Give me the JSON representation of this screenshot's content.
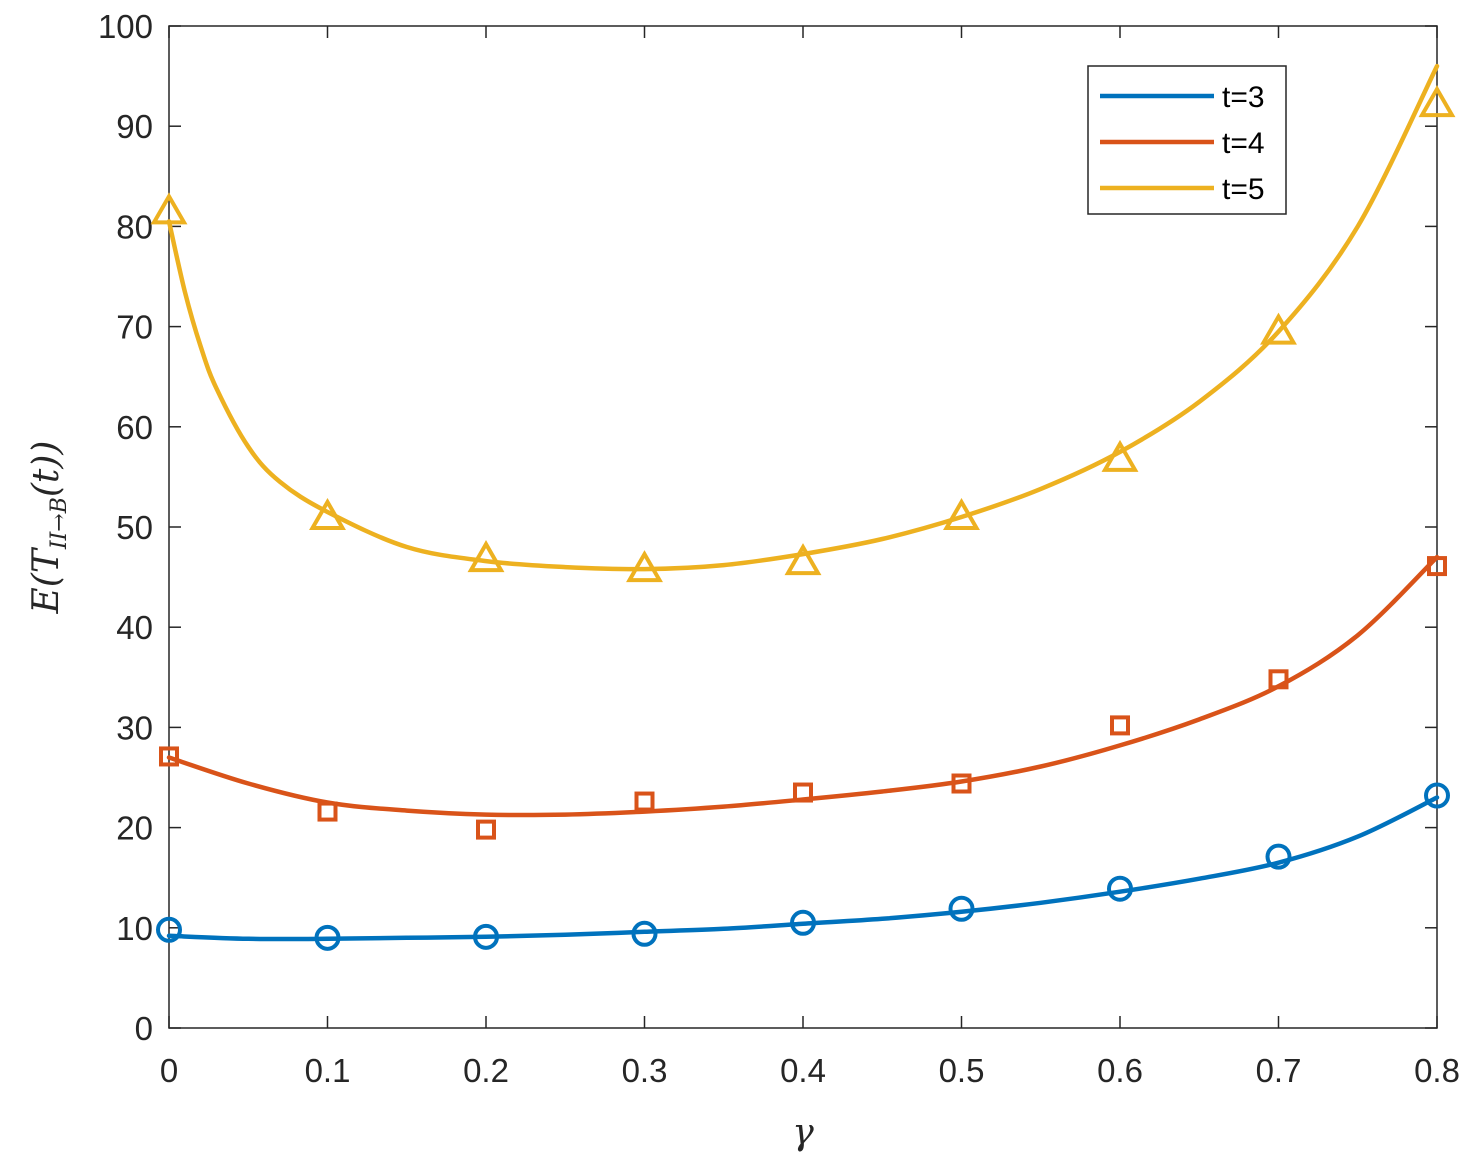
{
  "chart_data": {
    "type": "line",
    "xlabel": "γ",
    "ylabel_main": "E(T",
    "ylabel_sub": "II→B",
    "ylabel_tail": "(t))",
    "xlim": [
      0,
      0.8
    ],
    "ylim": [
      0,
      100
    ],
    "xticks": [
      0,
      0.1,
      0.2,
      0.3,
      0.4,
      0.5,
      0.6,
      0.7,
      0.8
    ],
    "xtick_labels": [
      "0",
      "0.1",
      "0.2",
      "0.3",
      "0.4",
      "0.5",
      "0.6",
      "0.7",
      "0.8"
    ],
    "yticks": [
      0,
      10,
      20,
      30,
      40,
      50,
      60,
      70,
      80,
      90,
      100
    ],
    "ytick_labels": [
      "0",
      "10",
      "20",
      "30",
      "40",
      "50",
      "60",
      "70",
      "80",
      "90",
      "100"
    ],
    "grid": false,
    "legend_position": "top-right",
    "series": [
      {
        "name": "t=3",
        "color": "#0072BD",
        "marker": "circle",
        "marker_x": [
          0,
          0.1,
          0.2,
          0.3,
          0.4,
          0.5,
          0.6,
          0.7,
          0.8
        ],
        "marker_y": [
          9.8,
          9.0,
          9.1,
          9.4,
          10.5,
          11.9,
          13.9,
          17.1,
          23.2
        ],
        "curve_x": [
          0,
          0.05,
          0.1,
          0.15,
          0.2,
          0.25,
          0.3,
          0.35,
          0.4,
          0.45,
          0.5,
          0.55,
          0.6,
          0.65,
          0.7,
          0.75,
          0.8
        ],
        "curve_y": [
          9.2,
          8.9,
          8.9,
          9.0,
          9.1,
          9.3,
          9.6,
          9.9,
          10.4,
          10.9,
          11.6,
          12.5,
          13.6,
          14.9,
          16.5,
          19.1,
          23.0
        ]
      },
      {
        "name": "t=4",
        "color": "#D95319",
        "marker": "square",
        "marker_x": [
          0,
          0.1,
          0.2,
          0.3,
          0.4,
          0.5,
          0.6,
          0.7,
          0.8
        ],
        "marker_y": [
          27.1,
          21.6,
          19.8,
          22.6,
          23.5,
          24.4,
          30.2,
          34.8,
          46.1
        ],
        "curve_x": [
          0,
          0.05,
          0.1,
          0.15,
          0.2,
          0.25,
          0.3,
          0.35,
          0.4,
          0.45,
          0.5,
          0.55,
          0.6,
          0.65,
          0.7,
          0.75,
          0.8
        ],
        "curve_y": [
          27.0,
          24.4,
          22.5,
          21.7,
          21.3,
          21.3,
          21.6,
          22.1,
          22.8,
          23.6,
          24.6,
          26.1,
          28.2,
          30.8,
          34.1,
          39.2,
          47.0
        ]
      },
      {
        "name": "t=5",
        "color": "#EDB120",
        "marker": "triangle",
        "marker_x": [
          0,
          0.1,
          0.2,
          0.3,
          0.4,
          0.5,
          0.6,
          0.7,
          0.8
        ],
        "marker_y": [
          81.5,
          51.0,
          46.8,
          45.8,
          46.5,
          51.0,
          56.8,
          69.5,
          92.2
        ],
        "curve_x": [
          0,
          0.01,
          0.02,
          0.03,
          0.05,
          0.07,
          0.1,
          0.15,
          0.2,
          0.25,
          0.3,
          0.35,
          0.4,
          0.45,
          0.5,
          0.55,
          0.6,
          0.65,
          0.7,
          0.75,
          0.8
        ],
        "curve_y": [
          80.5,
          73.5,
          68.0,
          63.8,
          58.0,
          54.5,
          51.5,
          48.0,
          46.6,
          46.0,
          45.8,
          46.2,
          47.3,
          48.8,
          51.0,
          53.8,
          57.5,
          62.5,
          69.5,
          80.0,
          96.0
        ]
      }
    ]
  }
}
